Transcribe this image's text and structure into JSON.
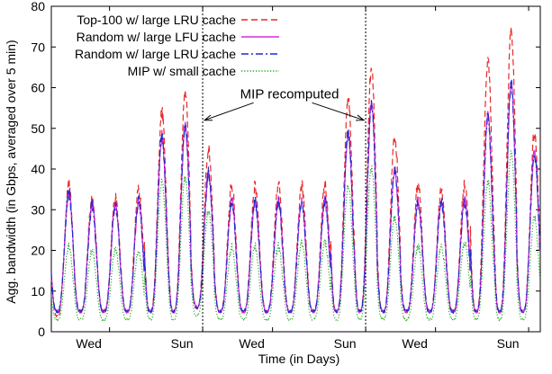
{
  "chart_data": {
    "type": "line",
    "title": "",
    "xlabel": "Time (in Days)",
    "ylabel": "Agg. bandwidth (in Gbps, averaged over 5 min)",
    "ylim": [
      0,
      80
    ],
    "xlim": [
      0,
      21
    ],
    "yticks": [
      0,
      10,
      20,
      30,
      40,
      50,
      60,
      70,
      80
    ],
    "xticks": [
      {
        "x": 2.5,
        "label": "Wed"
      },
      {
        "x": 6.5,
        "label": "Sun"
      },
      {
        "x": 9.5,
        "label": "Wed"
      },
      {
        "x": 13.5,
        "label": "Sun"
      },
      {
        "x": 16.5,
        "label": "Wed"
      },
      {
        "x": 20.5,
        "label": "Sun"
      }
    ],
    "grid": false,
    "legend_position": "top-left",
    "vlines": [
      {
        "x": 6.5,
        "style": "dotted"
      },
      {
        "x": 13.5,
        "style": "dotted"
      }
    ],
    "annotation": {
      "text": "MIP recomputed",
      "arrows_to_x": [
        6.5,
        13.5
      ],
      "arrow_y": 52,
      "text_y": 58.5
    },
    "series": [
      {
        "name": "Top-100 w/ large LRU cache",
        "color": "#e8292a",
        "dash": "dashed",
        "x": [
          0,
          1,
          2,
          3,
          4,
          5,
          6,
          7,
          8,
          9,
          10,
          11,
          12,
          13,
          14,
          15,
          16,
          17,
          18,
          19,
          20
        ],
        "daily_peak": [
          36,
          33,
          33,
          35,
          54,
          59,
          45,
          36,
          36,
          36,
          36,
          36,
          57,
          65,
          48,
          36,
          35,
          36,
          67,
          74,
          49
        ],
        "daily_min": [
          4,
          5,
          5,
          5,
          5,
          5,
          6,
          5,
          5,
          5,
          5,
          5,
          5,
          5,
          5,
          5,
          5,
          5,
          5,
          5,
          5
        ]
      },
      {
        "name": "Random w/ large LFU cache",
        "color": "#d62ad6",
        "dash": "solid",
        "x": [
          0,
          1,
          2,
          3,
          4,
          5,
          6,
          7,
          8,
          9,
          10,
          11,
          12,
          13,
          14,
          15,
          16,
          17,
          18,
          19,
          20
        ],
        "daily_peak": [
          34,
          31,
          31,
          32,
          48,
          51,
          39,
          32,
          32,
          32,
          32,
          32,
          49,
          56,
          40,
          32,
          32,
          32,
          53,
          61,
          44
        ],
        "daily_min": [
          5,
          5,
          5,
          5,
          5,
          5,
          6,
          5,
          5,
          5,
          5,
          5,
          5,
          5,
          5,
          5,
          5,
          5,
          5,
          5,
          5
        ]
      },
      {
        "name": "Random w/ large LRU cache",
        "color": "#1d2ccf",
        "dash": "dashdot",
        "x": [
          0,
          1,
          2,
          3,
          4,
          5,
          6,
          7,
          8,
          9,
          10,
          11,
          12,
          13,
          14,
          15,
          16,
          17,
          18,
          19,
          20
        ],
        "daily_peak": [
          34,
          31,
          31,
          32,
          48,
          51,
          39,
          32,
          32,
          32,
          32,
          32,
          49,
          56,
          40,
          32,
          32,
          32,
          53,
          61,
          44
        ],
        "daily_min": [
          5,
          5,
          5,
          5,
          5,
          5,
          6,
          5,
          5,
          5,
          5,
          5,
          5,
          5,
          5,
          5,
          5,
          5,
          5,
          5,
          5
        ]
      },
      {
        "name": "MIP w/ small cache",
        "color": "#1aa61a",
        "dash": "dotted",
        "x": [
          0,
          1,
          2,
          3,
          4,
          5,
          6,
          7,
          8,
          9,
          10,
          11,
          12,
          13,
          14,
          15,
          16,
          17,
          18,
          19,
          20
        ],
        "daily_peak": [
          21,
          20,
          20,
          20,
          37,
          38,
          30,
          21,
          21,
          21,
          22,
          22,
          36,
          40,
          28,
          21,
          21,
          22,
          37,
          44,
          28
        ],
        "daily_min": [
          3,
          3,
          3,
          3,
          3,
          3,
          4,
          3,
          3,
          3,
          3,
          3,
          3,
          3,
          3,
          3,
          3,
          3,
          3,
          3,
          3
        ]
      }
    ]
  }
}
